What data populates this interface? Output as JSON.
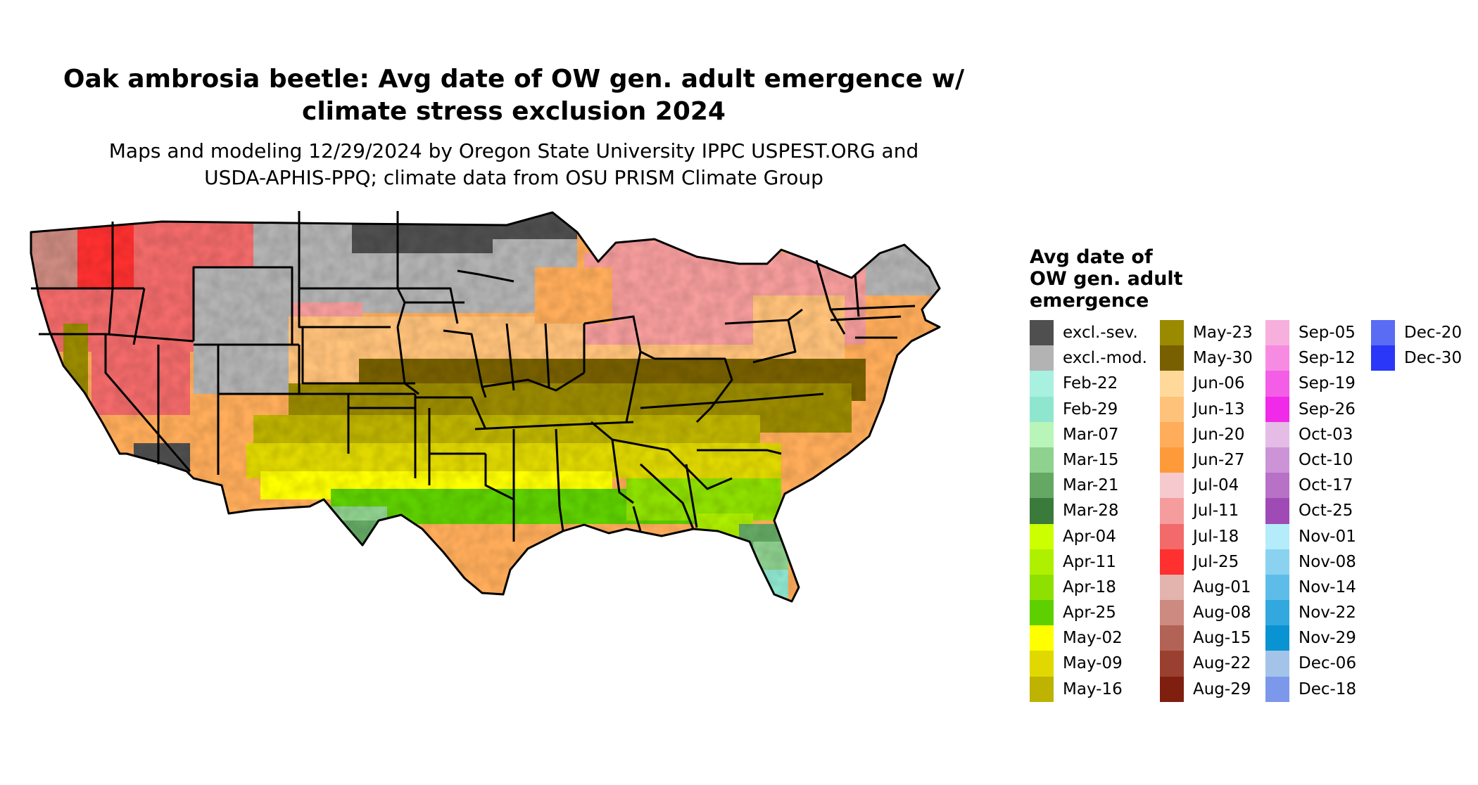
{
  "title": {
    "line1": "Oak ambrosia beetle: Avg date of OW gen. adult emergence w/",
    "line2": "climate stress exclusion 2024"
  },
  "subtitle": {
    "line1": "Maps and modeling 12/29/2024 by Oregon State University IPPC USPEST.ORG and",
    "line2": "USDA-APHIS-PPQ; climate data from OSU PRISM Climate Group"
  },
  "legend": {
    "title_lines": [
      "Avg date of",
      "OW gen. adult",
      "emergence"
    ],
    "columns": [
      [
        {
          "label": "excl.-sev.",
          "color": "#4f4f4f"
        },
        {
          "label": "excl.-mod.",
          "color": "#b3b3b3"
        },
        {
          "label": "Feb-22",
          "color": "#a8f0df"
        },
        {
          "label": "Feb-29",
          "color": "#8fe6cf"
        },
        {
          "label": "Mar-07",
          "color": "#b9f5b9"
        },
        {
          "label": "Mar-15",
          "color": "#8fd18f"
        },
        {
          "label": "Mar-21",
          "color": "#64a864"
        },
        {
          "label": "Mar-28",
          "color": "#3a7a3a"
        },
        {
          "label": "Apr-04",
          "color": "#ccff00"
        },
        {
          "label": "Apr-11",
          "color": "#aef000"
        },
        {
          "label": "Apr-18",
          "color": "#8ee000"
        },
        {
          "label": "Apr-25",
          "color": "#5ed000"
        },
        {
          "label": "May-02",
          "color": "#ffff00"
        },
        {
          "label": "May-09",
          "color": "#e0d800"
        },
        {
          "label": "May-16",
          "color": "#bdb300"
        }
      ],
      [
        {
          "label": "May-23",
          "color": "#9a8a00"
        },
        {
          "label": "May-30",
          "color": "#786000"
        },
        {
          "label": "Jun-06",
          "color": "#ffd99a"
        },
        {
          "label": "Jun-13",
          "color": "#ffc27a"
        },
        {
          "label": "Jun-20",
          "color": "#ffad5a"
        },
        {
          "label": "Jun-27",
          "color": "#ff9a3a"
        },
        {
          "label": "Jul-04",
          "color": "#f5c9cd"
        },
        {
          "label": "Jul-11",
          "color": "#f59c9c"
        },
        {
          "label": "Jul-18",
          "color": "#f26a6a"
        },
        {
          "label": "Jul-25",
          "color": "#ff3030"
        },
        {
          "label": "Aug-01",
          "color": "#e3b3ad"
        },
        {
          "label": "Aug-08",
          "color": "#cc8a80"
        },
        {
          "label": "Aug-15",
          "color": "#b26356"
        },
        {
          "label": "Aug-22",
          "color": "#9a4030"
        },
        {
          "label": "Aug-29",
          "color": "#7e1f10"
        }
      ],
      [
        {
          "label": "Sep-05",
          "color": "#f7afdd"
        },
        {
          "label": "Sep-12",
          "color": "#f78be2"
        },
        {
          "label": "Sep-19",
          "color": "#f45ee6"
        },
        {
          "label": "Sep-26",
          "color": "#f02ae8"
        },
        {
          "label": "Oct-03",
          "color": "#e4bce6"
        },
        {
          "label": "Oct-10",
          "color": "#cc94d6"
        },
        {
          "label": "Oct-17",
          "color": "#b771c6"
        },
        {
          "label": "Oct-25",
          "color": "#a04ab6"
        },
        {
          "label": "Nov-01",
          "color": "#b4ecfa"
        },
        {
          "label": "Nov-08",
          "color": "#8ad2f0"
        },
        {
          "label": "Nov-14",
          "color": "#5ebde8"
        },
        {
          "label": "Nov-22",
          "color": "#32a8de"
        },
        {
          "label": "Nov-29",
          "color": "#0a93d2"
        },
        {
          "label": "Dec-06",
          "color": "#a3c4e8"
        },
        {
          "label": "Dec-18",
          "color": "#7c98ea"
        }
      ],
      [
        {
          "label": "Dec-20",
          "color": "#5a6cf4"
        },
        {
          "label": "Dec-30",
          "color": "#2a36f8"
        }
      ]
    ]
  }
}
